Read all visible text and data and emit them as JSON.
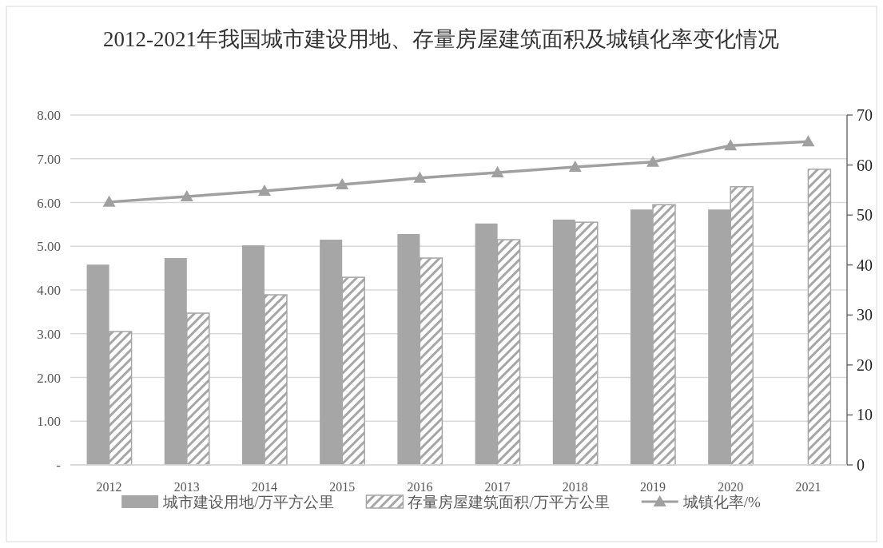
{
  "chart_data": {
    "type": "bar",
    "title": "2012-2021年我国城市建设用地、存量房屋建筑面积及城镇化率变化情况",
    "categories": [
      "2012",
      "2013",
      "2014",
      "2015",
      "2016",
      "2017",
      "2018",
      "2019",
      "2020",
      "2021"
    ],
    "series": [
      {
        "name": "城市建设用地/万平方公里",
        "color": "#a6a6a6",
        "values": [
          4.58,
          4.73,
          5.02,
          5.15,
          5.28,
          5.52,
          5.61,
          5.84,
          5.84,
          null
        ]
      },
      {
        "name": "存量房屋建筑面积/万平方公里",
        "color": "#a6a6a6",
        "values": [
          3.05,
          3.47,
          3.89,
          4.29,
          4.73,
          5.15,
          5.55,
          5.95,
          6.36,
          6.76
        ]
      },
      {
        "name": "城镇化率/%",
        "type": "line",
        "axis": "y2",
        "marker": "triangle",
        "color": "#a0a0a0",
        "values": [
          52.6,
          53.7,
          54.8,
          56.1,
          57.4,
          58.5,
          59.6,
          60.6,
          63.9,
          64.7
        ]
      }
    ],
    "ylim": [
      0,
      8
    ],
    "yticks": [
      {
        "value": 0,
        "label": "-"
      },
      {
        "value": 1,
        "label": "1.00"
      },
      {
        "value": 2,
        "label": "2.00"
      },
      {
        "value": 3,
        "label": "3.00"
      },
      {
        "value": 4,
        "label": "4.00"
      },
      {
        "value": 5,
        "label": "5.00"
      },
      {
        "value": 6,
        "label": "6.00"
      },
      {
        "value": 7,
        "label": "7.00"
      },
      {
        "value": 8,
        "label": "8.00"
      }
    ],
    "y2lim": [
      0,
      70
    ],
    "y2ticks": [
      0,
      10,
      20,
      30,
      40,
      50,
      60,
      70
    ],
    "grid": "y",
    "legend": "bottom"
  }
}
